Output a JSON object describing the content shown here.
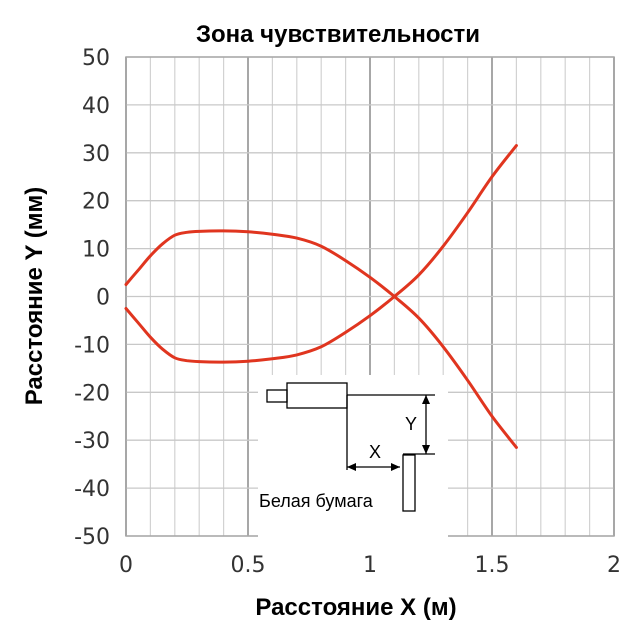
{
  "chart_data": {
    "type": "line",
    "title": "Зона чувствительности",
    "xlabel": "Расстояние X (м)",
    "ylabel": "Расстояние Y (мм)",
    "xlim": [
      0,
      2
    ],
    "ylim": [
      -50,
      50
    ],
    "x_ticks": [
      "0",
      "0.5",
      "1",
      "1.5",
      "2"
    ],
    "y_ticks": [
      "50",
      "40",
      "30",
      "20",
      "10",
      "0",
      "-10",
      "-20",
      "-30",
      "-40",
      "-50"
    ],
    "grid": true,
    "line_color": "#e0351f",
    "series": [
      {
        "x": [
          0.0,
          0.05,
          0.1,
          0.15,
          0.2,
          0.25,
          0.3,
          0.4,
          0.5,
          0.6,
          0.7,
          0.8,
          0.9,
          1.0,
          1.1,
          1.2,
          1.3,
          1.4,
          1.5,
          1.6
        ],
        "y": [
          2.5,
          5.5,
          8.5,
          11.0,
          12.8,
          13.4,
          13.6,
          13.7,
          13.5,
          13.0,
          12.2,
          10.5,
          7.5,
          4.0,
          0.0,
          -4.5,
          -10.5,
          -17.5,
          -25.0,
          -31.5
        ]
      },
      {
        "x": [
          0.0,
          0.05,
          0.1,
          0.15,
          0.2,
          0.25,
          0.3,
          0.4,
          0.5,
          0.6,
          0.7,
          0.8,
          0.9,
          1.0,
          1.1,
          1.2,
          1.3,
          1.4,
          1.5,
          1.6
        ],
        "y": [
          -2.5,
          -5.5,
          -8.5,
          -11.0,
          -12.8,
          -13.4,
          -13.6,
          -13.7,
          -13.5,
          -13.0,
          -12.2,
          -10.5,
          -7.5,
          -4.0,
          0.0,
          4.5,
          10.5,
          17.5,
          25.0,
          31.5
        ]
      }
    ],
    "inset": {
      "x_label": "X",
      "y_label": "Y",
      "paper_label": "Белая бумага"
    }
  }
}
